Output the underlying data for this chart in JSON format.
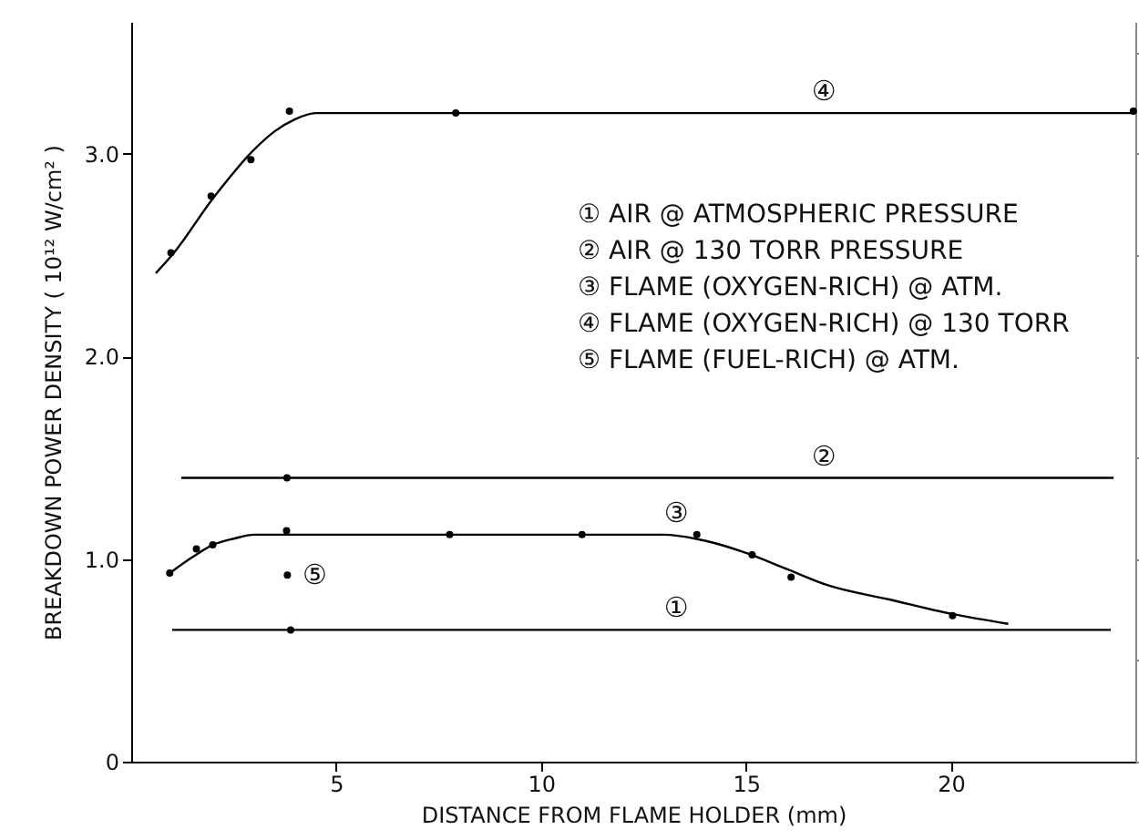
{
  "chart_data": {
    "type": "line",
    "xlabel": "DISTANCE FROM FLAME HOLDER (mm)",
    "ylabel": "BREAKDOWN POWER DENSITY ( 10¹² W/cm² )",
    "xlim": [
      0,
      24.5
    ],
    "ylim": [
      0,
      3.65
    ],
    "xticks": [
      5,
      10,
      15,
      20
    ],
    "yticks": [
      0,
      {
        "value": 1,
        "label": "1.0"
      },
      {
        "value": 2,
        "label": "2.0"
      },
      {
        "value": 3,
        "label": "3.0"
      }
    ],
    "line_style": "solid",
    "series": [
      {
        "color": "#000000",
        "x": [
          1.22,
          23.97
        ],
        "values": [
          1.4,
          1.4
        ]
      },
      {
        "type": "scatter",
        "marker": "circle",
        "color": "#000000",
        "x": [
          3.8
        ],
        "values": [
          1.4
        ]
      },
      {
        "color": "#000000",
        "x": [
          1.0,
          23.9
        ],
        "values": [
          0.65,
          0.65
        ]
      },
      {
        "type": "scatter",
        "marker": "circle",
        "color": "#000000",
        "x": [
          3.89
        ],
        "values": [
          0.65
        ]
      },
      {
        "color": "#000000",
        "x": [
          0.6,
          1,
          2,
          3,
          3.5,
          4,
          4.5,
          24.4
        ],
        "values": [
          2.41,
          2.5,
          2.78,
          3.02,
          3.11,
          3.17,
          3.2,
          3.2
        ]
      },
      {
        "type": "scatter",
        "marker": "circle",
        "color": "#000000",
        "x": [
          0.97,
          1.95,
          2.92,
          3.86,
          7.92,
          24.45
        ],
        "values": [
          2.51,
          2.79,
          2.97,
          3.21,
          3.2,
          3.21
        ]
      },
      {
        "color": "#000000",
        "x": [
          0.94,
          1.5,
          2,
          2.5,
          3,
          13,
          14,
          15,
          16,
          17,
          18.5,
          20,
          21.4
        ],
        "values": [
          0.93,
          1.01,
          1.07,
          1.1,
          1.12,
          1.12,
          1.09,
          1.03,
          0.95,
          0.87,
          0.8,
          0.73,
          0.68
        ]
      },
      {
        "type": "scatter",
        "marker": "circle",
        "color": "#000000",
        "x": [
          0.94,
          1.59,
          1.99,
          3.79,
          7.77,
          11.0,
          13.8,
          15.15,
          16.1,
          20.04
        ],
        "values": [
          0.93,
          1.05,
          1.07,
          1.14,
          1.12,
          1.12,
          1.12,
          1.02,
          0.91,
          0.72
        ]
      },
      {
        "type": "scatter",
        "marker": "circle",
        "color": "#000000",
        "x": [
          3.81
        ],
        "values": [
          0.92
        ]
      }
    ],
    "annotations": [
      {
        "text": "①",
        "x": 13.3,
        "y": 0.65
      },
      {
        "text": "②",
        "x": 16.9,
        "y": 1.4
      },
      {
        "text": "③",
        "x": 13.3,
        "y": 1.12
      },
      {
        "text": "④",
        "x": 16.9,
        "y": 3.2
      },
      {
        "text": "⑤",
        "x": 3.81,
        "y": 0.92
      },
      "① AIR @ ATMOSPHERIC PRESSURE",
      "② AIR @ 130 TORR PRESSURE",
      "③ FLAME (OXYGEN-RICH) @ ATM.",
      "④ FLAME (OXYGEN-RICH) @ 130 TORR",
      "⑤ FLAME (FUEL-RICH) @ ATM."
    ]
  }
}
